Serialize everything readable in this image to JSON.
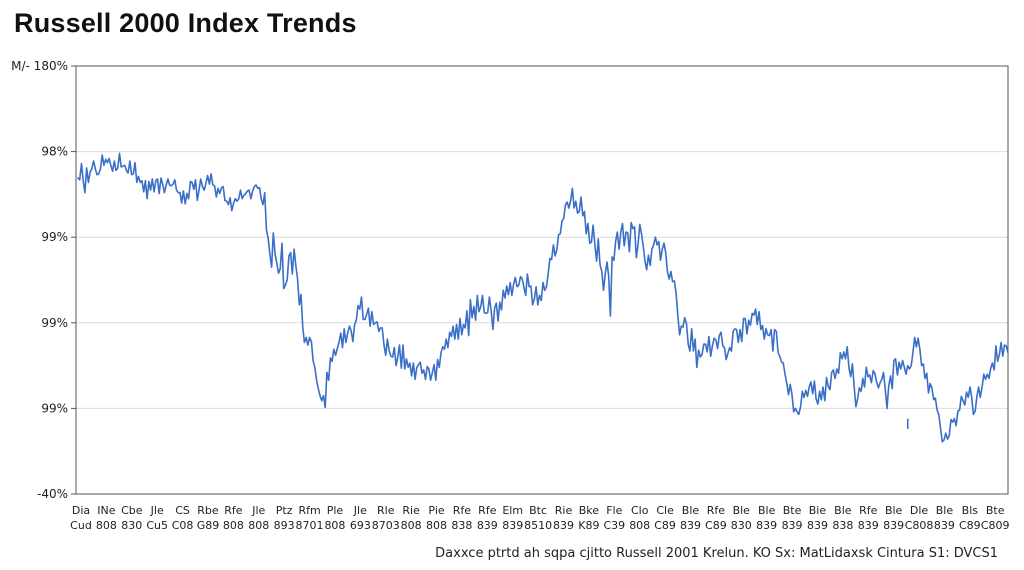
{
  "chart_data": {
    "type": "line",
    "title": "Russell 2000 Index Trends",
    "source": "Daxxce  ptrtd ah sqpa cjitto  Russell 2001 Krelun. KO Sx: MatLidaxsk  Cintura  S1: DVCS1",
    "y_tick_labels": [
      "-40%",
      "99%",
      "99%",
      "99%",
      "98%",
      "M/- 180%"
    ],
    "y_tick_values": [
      0,
      1,
      2,
      3,
      4,
      5
    ],
    "ylim": [
      0,
      5
    ],
    "x_tick_labels": [
      [
        "Dia",
        "Cud"
      ],
      [
        "INe",
        "808"
      ],
      [
        "Cbe",
        "830"
      ],
      [
        "Jle",
        "Cu5"
      ],
      [
        "CS",
        "C08"
      ],
      [
        "Rbe",
        "G89"
      ],
      [
        "Rfe",
        "808"
      ],
      [
        "Jle",
        "808"
      ],
      [
        "Ptz",
        "893"
      ],
      [
        "Rfm",
        "8701"
      ],
      [
        "Ple",
        "808"
      ],
      [
        "Jle",
        "693"
      ],
      [
        "Rle",
        "8703"
      ],
      [
        "Rie",
        "808"
      ],
      [
        "Pie",
        "808"
      ],
      [
        "Rfe",
        "838"
      ],
      [
        "Rfe",
        "839"
      ],
      [
        "Elm",
        "839"
      ],
      [
        "Btc",
        "8510"
      ],
      [
        "Rie",
        "839"
      ],
      [
        "Bke",
        "K89"
      ],
      [
        "Fle",
        "C39"
      ],
      [
        "Clo",
        "808"
      ],
      [
        "Cle",
        "C89"
      ],
      [
        "Ble",
        "839"
      ],
      [
        "Rfe",
        "C89"
      ],
      [
        "Ble",
        "830"
      ],
      [
        "Ble",
        "839"
      ],
      [
        "Bte",
        "839"
      ],
      [
        "Bie",
        "839"
      ],
      [
        "Ble",
        "838"
      ],
      [
        "Rfe",
        "839"
      ],
      [
        "Ble",
        "839"
      ],
      [
        "Dle",
        "C808"
      ],
      [
        "Ble",
        "839"
      ],
      [
        "Bls",
        "C89"
      ],
      [
        "Bte",
        "C809"
      ]
    ],
    "grid": true,
    "legend": "none",
    "series": [
      {
        "color": "#3a6fc7",
        "values": [
          3.69,
          3.67,
          3.86,
          3.66,
          3.52,
          3.81,
          3.64,
          3.76,
          3.8,
          3.89,
          3.8,
          3.73,
          3.74,
          3.8,
          3.96,
          3.84,
          3.91,
          3.87,
          3.92,
          3.84,
          3.77,
          3.89,
          3.78,
          3.81,
          3.98,
          3.82,
          3.83,
          3.84,
          3.78,
          3.75,
          3.89,
          3.73,
          3.74,
          3.87,
          3.64,
          3.71,
          3.64,
          3.66,
          3.53,
          3.66,
          3.45,
          3.65,
          3.55,
          3.68,
          3.53,
          3.66,
          3.68,
          3.51,
          3.69,
          3.62,
          3.52,
          3.61,
          3.68,
          3.61,
          3.6,
          3.62,
          3.67,
          3.55,
          3.52,
          3.52,
          3.4,
          3.54,
          3.39,
          3.51,
          3.45,
          3.65,
          3.64,
          3.56,
          3.67,
          3.43,
          3.55,
          3.68,
          3.59,
          3.55,
          3.63,
          3.72,
          3.62,
          3.74,
          3.61,
          3.6,
          3.47,
          3.57,
          3.51,
          3.58,
          3.59,
          3.43,
          3.42,
          3.38,
          3.46,
          3.31,
          3.4,
          3.45,
          3.42,
          3.45,
          3.55,
          3.45,
          3.49,
          3.51,
          3.54,
          3.55,
          3.45,
          3.54,
          3.59,
          3.61,
          3.57,
          3.58,
          3.45,
          3.38,
          3.52,
          3.09,
          2.99,
          2.8,
          2.65,
          3.05,
          2.8,
          2.7,
          2.58,
          2.63,
          2.93,
          2.4,
          2.44,
          2.5,
          2.78,
          2.82,
          2.57,
          2.86,
          2.67,
          2.52,
          2.21,
          2.33,
          1.96,
          1.77,
          1.83,
          1.74,
          1.83,
          1.78,
          1.56,
          1.48,
          1.33,
          1.23,
          1.15,
          1.09,
          1.15,
          1.01,
          1.42,
          1.33,
          1.59,
          1.55,
          1.69,
          1.62,
          1.7,
          1.77,
          1.88,
          1.71,
          1.93,
          1.77,
          1.88,
          1.96,
          1.91,
          1.78,
          1.98,
          2.03,
          2.2,
          2.16,
          2.3,
          2.04,
          2.04,
          2.1,
          2.17,
          1.96,
          2.13,
          1.98,
          2.0,
          2.01,
          1.9,
          1.94,
          1.94,
          1.74,
          1.62,
          1.81,
          1.67,
          1.61,
          1.6,
          1.71,
          1.5,
          1.6,
          1.74,
          1.47,
          1.74,
          1.46,
          1.58,
          1.48,
          1.53,
          1.38,
          1.53,
          1.34,
          1.48,
          1.51,
          1.54,
          1.41,
          1.45,
          1.34,
          1.49,
          1.46,
          1.33,
          1.42,
          1.51,
          1.33,
          1.57,
          1.48,
          1.65,
          1.72,
          1.69,
          1.81,
          1.71,
          1.89,
          1.84,
          1.96,
          1.81,
          1.98,
          1.81,
          2.05,
          1.86,
          1.98,
          1.94,
          2.14,
          1.85,
          2.27,
          2.06,
          2.19,
          2.03,
          2.32,
          2.13,
          2.19,
          2.32,
          2.12,
          2.11,
          2.12,
          2.3,
          2.15,
          1.92,
          2.17,
          2.23,
          2.02,
          2.24,
          2.15,
          2.38,
          2.29,
          2.43,
          2.33,
          2.47,
          2.32,
          2.45,
          2.53,
          2.42,
          2.44,
          2.54,
          2.51,
          2.41,
          2.32,
          2.57,
          2.42,
          2.43,
          2.21,
          2.28,
          2.42,
          2.21,
          2.32,
          2.26,
          2.47,
          2.38,
          2.42,
          2.58,
          2.75,
          2.74,
          2.91,
          2.78,
          2.85,
          3.03,
          3.04,
          3.19,
          3.22,
          3.38,
          3.41,
          3.34,
          3.43,
          3.57,
          3.34,
          3.42,
          3.28,
          3.3,
          3.47,
          3.25,
          3.3,
          3.04,
          3.16,
          2.93,
          2.94,
          3.14,
          2.91,
          2.72,
          2.98,
          2.68,
          2.6,
          2.38,
          2.57,
          2.71,
          2.54,
          2.08,
          2.77,
          2.73,
          2.95,
          3.06,
          2.86,
          3.06,
          3.16,
          2.9,
          3.06,
          3.05,
          2.83,
          3.17,
          3.1,
          3.12,
          2.76,
          2.92,
          3.15,
          3.04,
          2.89,
          2.72,
          2.62,
          2.79,
          2.67,
          2.86,
          2.91,
          3.0,
          2.91,
          2.95,
          2.73,
          2.86,
          2.93,
          2.82,
          2.59,
          2.51,
          2.6,
          2.48,
          2.49,
          2.34,
          2.09,
          1.86,
          1.96,
          1.95,
          2.06,
          1.99,
          1.75,
          1.67,
          1.93,
          1.67,
          1.81,
          1.48,
          1.68,
          1.6,
          1.63,
          1.75,
          1.75,
          1.66,
          1.84,
          1.61,
          1.73,
          1.82,
          1.8,
          1.7,
          1.85,
          1.89,
          1.73,
          1.71,
          1.57,
          1.65,
          1.71,
          1.67,
          1.9,
          1.93,
          1.92,
          1.77,
          1.92,
          1.78,
          2.05,
          2.05,
          1.87,
          2.03,
          1.97,
          2.11,
          2.09,
          2.16,
          1.98,
          2.13,
          1.92,
          1.97,
          1.81,
          1.93,
          1.86,
          1.85,
          1.92,
          1.67,
          1.92,
          1.9,
          1.65,
          1.61,
          1.54,
          1.53,
          1.4,
          1.3,
          1.16,
          1.28,
          1.17,
          0.96,
          1.0,
          0.96,
          0.93,
          1.02,
          1.2,
          1.13,
          1.21,
          1.14,
          1.25,
          1.31,
          1.17,
          1.32,
          1.11,
          1.05,
          1.2,
          1.1,
          1.25,
          1.09,
          1.36,
          1.26,
          1.22,
          1.42,
          1.45,
          1.35,
          1.46,
          1.41,
          1.65,
          1.58,
          1.66,
          1.58,
          1.72,
          1.47,
          1.37,
          1.52,
          1.25,
          1.02,
          1.11,
          1.24,
          1.2,
          1.35,
          1.25,
          1.48,
          1.37,
          1.39,
          1.3,
          1.44,
          1.41,
          1.31,
          1.24,
          1.3,
          1.34,
          1.42,
          1.22,
          1.0,
          1.26,
          1.38,
          1.23,
          1.56,
          1.58,
          1.39,
          1.54,
          1.46,
          1.56,
          1.48,
          1.4,
          1.5,
          1.46,
          1.5,
          1.65,
          1.83,
          1.72,
          1.82,
          1.7,
          1.5,
          1.52,
          1.35,
          1.41,
          1.18,
          1.29,
          1.24,
          1.1,
          1.12,
          0.98,
          0.92,
          0.76,
          0.61,
          0.63,
          0.71,
          0.64,
          0.68,
          0.87,
          0.84,
          0.88,
          0.8,
          0.97,
          0.98,
          1.14,
          1.09,
          1.04,
          1.19,
          1.13,
          1.25,
          1.13,
          0.93,
          0.97,
          1.14,
          1.25,
          1.13,
          1.25,
          1.4,
          1.34,
          1.4,
          1.35,
          1.47,
          1.53,
          1.45,
          1.73,
          1.55,
          1.63,
          1.77,
          1.61,
          1.74,
          1.73,
          1.65
        ]
      }
    ],
    "annotations": [
      {
        "type": "isolated-tick",
        "index": 480,
        "from": 0.76,
        "to": 0.88
      }
    ]
  }
}
